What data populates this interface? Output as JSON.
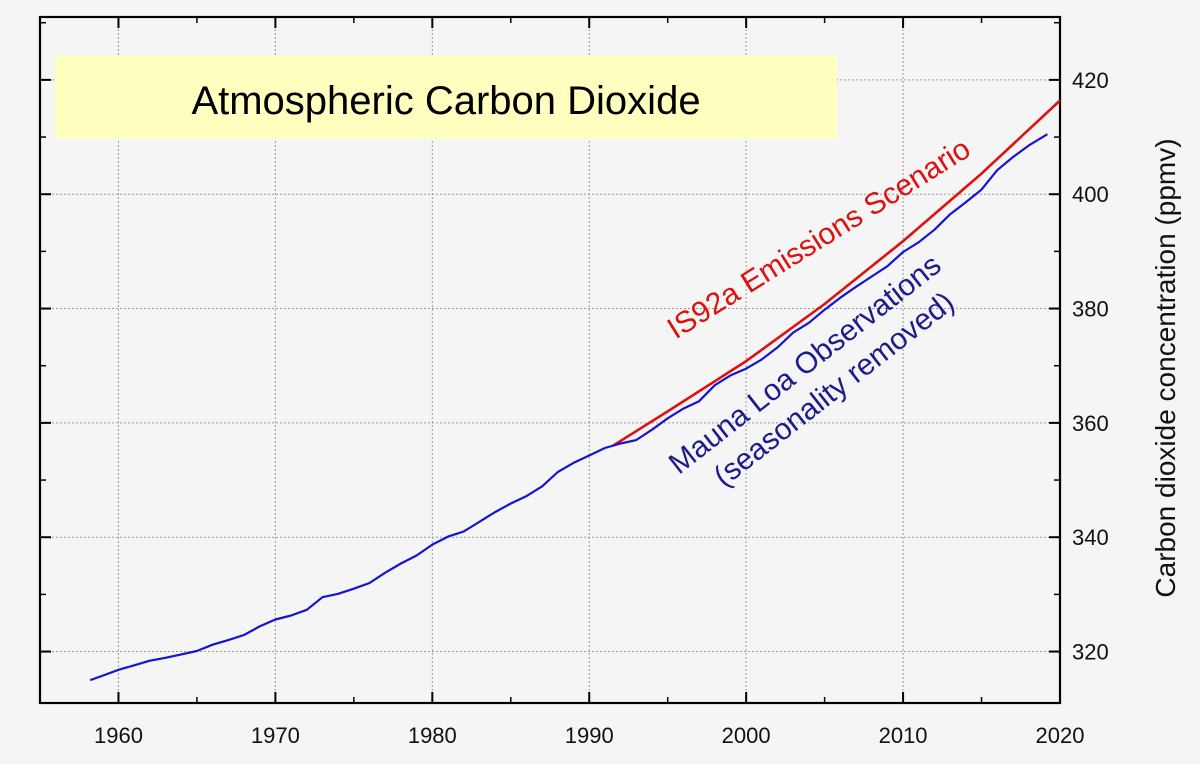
{
  "chart_data": {
    "type": "line",
    "title": "Atmospheric Carbon Dioxide",
    "xlabel": "",
    "ylabel": "Carbon dioxide concentration (ppmv)",
    "xlim": [
      1955,
      2020
    ],
    "ylim": [
      311,
      431
    ],
    "x_ticks": [
      1960,
      1970,
      1980,
      1990,
      2000,
      2010,
      2020
    ],
    "y_ticks": [
      320,
      340,
      360,
      380,
      400,
      420
    ],
    "grid": true,
    "y_axis_side": "right",
    "colors": {
      "observed": "#1414d2",
      "scenario": "#e01010",
      "title_box": "#ffffc0"
    },
    "annotations": {
      "scenario_label": "IS92a Emissions Scenario",
      "observed_line1": "Mauna Loa Observations",
      "observed_line2": "(seasonality removed)"
    },
    "series": [
      {
        "name": "Mauna Loa Observations (seasonality removed)",
        "x": [
          1958.2,
          1959,
          1960,
          1961,
          1962,
          1963,
          1964,
          1965,
          1966,
          1967,
          1968,
          1969,
          1970,
          1971,
          1972,
          1973,
          1974,
          1975,
          1976,
          1977,
          1978,
          1979,
          1980,
          1981,
          1982,
          1983,
          1984,
          1985,
          1986,
          1987,
          1988,
          1989,
          1990,
          1991,
          1992,
          1993,
          1994,
          1995,
          1996,
          1997,
          1998,
          1999,
          2000,
          2001,
          2002,
          2003,
          2004,
          2005,
          2006,
          2007,
          2008,
          2009,
          2010,
          2011,
          2012,
          2013,
          2014,
          2015,
          2016,
          2017,
          2018,
          2019.2
        ],
        "y": [
          315.0,
          315.8,
          316.8,
          317.6,
          318.4,
          318.9,
          319.5,
          320.1,
          321.2,
          322.0,
          322.9,
          324.4,
          325.6,
          326.3,
          327.3,
          329.5,
          330.1,
          331.0,
          332.0,
          333.8,
          335.4,
          336.8,
          338.7,
          340.1,
          341.0,
          342.7,
          344.4,
          345.9,
          347.2,
          348.9,
          351.4,
          353.0,
          354.3,
          355.6,
          356.4,
          357.0,
          358.8,
          360.8,
          362.5,
          363.8,
          366.6,
          368.3,
          369.5,
          371.1,
          373.2,
          375.8,
          377.5,
          379.8,
          381.9,
          383.8,
          385.6,
          387.4,
          389.9,
          391.6,
          393.8,
          396.5,
          398.6,
          400.8,
          404.2,
          406.5,
          408.5,
          410.5
        ]
      },
      {
        "name": "IS92a Emissions Scenario",
        "x": [
          1991.5,
          1995,
          2000,
          2005,
          2010,
          2015,
          2020
        ],
        "y": [
          356.0,
          362.0,
          370.8,
          380.8,
          391.8,
          403.6,
          416.4
        ]
      }
    ]
  }
}
